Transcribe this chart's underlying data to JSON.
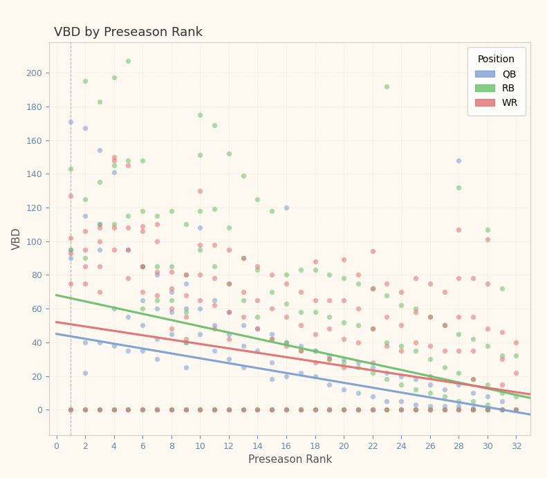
{
  "title": "VBD by Preseason Rank",
  "xlabel": "Preseason Rank",
  "ylabel": "VBD",
  "background_color": "#fdf9f0",
  "plot_bg_color": "#fdf9f0",
  "title_bg_color": "#d4d4d4",
  "colors": {
    "QB": "#7b9fd4",
    "RB": "#6abf69",
    "WR": "#e07070"
  },
  "xlim": [
    -0.5,
    33
  ],
  "ylim": [
    -15,
    218
  ],
  "xticks": [
    0,
    2,
    4,
    6,
    8,
    10,
    12,
    14,
    16,
    18,
    20,
    22,
    24,
    26,
    28,
    30,
    32
  ],
  "yticks": [
    0,
    20,
    40,
    60,
    80,
    100,
    120,
    140,
    160,
    180,
    200
  ],
  "QB_points": [
    [
      1,
      171
    ],
    [
      1,
      95
    ],
    [
      1,
      90
    ],
    [
      2,
      167
    ],
    [
      2,
      115
    ],
    [
      2,
      40
    ],
    [
      2,
      22
    ],
    [
      3,
      154
    ],
    [
      3,
      110
    ],
    [
      3,
      95
    ],
    [
      3,
      40
    ],
    [
      4,
      141
    ],
    [
      4,
      60
    ],
    [
      4,
      38
    ],
    [
      5,
      95
    ],
    [
      5,
      55
    ],
    [
      5,
      35
    ],
    [
      6,
      85
    ],
    [
      6,
      65
    ],
    [
      6,
      50
    ],
    [
      6,
      35
    ],
    [
      7,
      80
    ],
    [
      7,
      60
    ],
    [
      7,
      42
    ],
    [
      7,
      30
    ],
    [
      8,
      70
    ],
    [
      8,
      58
    ],
    [
      8,
      45
    ],
    [
      9,
      75
    ],
    [
      9,
      60
    ],
    [
      9,
      40
    ],
    [
      9,
      25
    ],
    [
      10,
      108
    ],
    [
      10,
      60
    ],
    [
      10,
      45
    ],
    [
      11,
      65
    ],
    [
      11,
      50
    ],
    [
      11,
      35
    ],
    [
      12,
      58
    ],
    [
      12,
      45
    ],
    [
      12,
      30
    ],
    [
      13,
      50
    ],
    [
      13,
      38
    ],
    [
      13,
      25
    ],
    [
      14,
      48
    ],
    [
      14,
      35
    ],
    [
      15,
      45
    ],
    [
      15,
      28
    ],
    [
      15,
      18
    ],
    [
      16,
      120
    ],
    [
      16,
      40
    ],
    [
      16,
      20
    ],
    [
      17,
      38
    ],
    [
      17,
      22
    ],
    [
      18,
      35
    ],
    [
      18,
      20
    ],
    [
      19,
      32
    ],
    [
      19,
      15
    ],
    [
      20,
      30
    ],
    [
      20,
      12
    ],
    [
      21,
      28
    ],
    [
      21,
      10
    ],
    [
      22,
      25
    ],
    [
      22,
      8
    ],
    [
      23,
      22
    ],
    [
      23,
      5
    ],
    [
      24,
      20
    ],
    [
      24,
      5
    ],
    [
      25,
      18
    ],
    [
      25,
      3
    ],
    [
      26,
      15
    ],
    [
      26,
      2
    ],
    [
      27,
      12
    ],
    [
      27,
      2
    ],
    [
      28,
      148
    ],
    [
      28,
      15
    ],
    [
      28,
      2
    ],
    [
      29,
      10
    ],
    [
      29,
      1
    ],
    [
      30,
      8
    ],
    [
      30,
      1
    ],
    [
      31,
      5
    ],
    [
      31,
      0
    ],
    [
      1,
      0
    ],
    [
      2,
      0
    ],
    [
      3,
      0
    ],
    [
      4,
      0
    ],
    [
      5,
      0
    ],
    [
      6,
      0
    ],
    [
      7,
      0
    ],
    [
      8,
      0
    ],
    [
      9,
      0
    ],
    [
      10,
      0
    ],
    [
      11,
      0
    ],
    [
      12,
      0
    ],
    [
      13,
      0
    ],
    [
      14,
      0
    ],
    [
      15,
      0
    ],
    [
      16,
      0
    ],
    [
      17,
      0
    ],
    [
      18,
      0
    ],
    [
      19,
      0
    ],
    [
      20,
      0
    ],
    [
      21,
      0
    ],
    [
      22,
      0
    ],
    [
      23,
      0
    ],
    [
      24,
      0
    ],
    [
      25,
      0
    ],
    [
      26,
      0
    ],
    [
      27,
      0
    ],
    [
      28,
      0
    ],
    [
      29,
      0
    ],
    [
      30,
      0
    ],
    [
      31,
      0
    ],
    [
      32,
      0
    ]
  ],
  "RB_points": [
    [
      1,
      143
    ],
    [
      1,
      95
    ],
    [
      2,
      195
    ],
    [
      2,
      125
    ],
    [
      2,
      90
    ],
    [
      3,
      183
    ],
    [
      3,
      135
    ],
    [
      3,
      110
    ],
    [
      4,
      197
    ],
    [
      4,
      145
    ],
    [
      4,
      110
    ],
    [
      5,
      207
    ],
    [
      5,
      148
    ],
    [
      5,
      115
    ],
    [
      6,
      148
    ],
    [
      6,
      118
    ],
    [
      6,
      85
    ],
    [
      6,
      60
    ],
    [
      7,
      115
    ],
    [
      7,
      85
    ],
    [
      7,
      65
    ],
    [
      8,
      118
    ],
    [
      8,
      85
    ],
    [
      8,
      65
    ],
    [
      9,
      110
    ],
    [
      9,
      80
    ],
    [
      9,
      58
    ],
    [
      9,
      40
    ],
    [
      10,
      175
    ],
    [
      10,
      151
    ],
    [
      10,
      118
    ],
    [
      10,
      95
    ],
    [
      11,
      169
    ],
    [
      11,
      119
    ],
    [
      11,
      85
    ],
    [
      12,
      152
    ],
    [
      12,
      108
    ],
    [
      12,
      75
    ],
    [
      13,
      139
    ],
    [
      13,
      90
    ],
    [
      13,
      65
    ],
    [
      14,
      125
    ],
    [
      14,
      83
    ],
    [
      14,
      55
    ],
    [
      15,
      118
    ],
    [
      15,
      70
    ],
    [
      15,
      42
    ],
    [
      16,
      80
    ],
    [
      16,
      63
    ],
    [
      16,
      40
    ],
    [
      17,
      83
    ],
    [
      17,
      58
    ],
    [
      17,
      35
    ],
    [
      18,
      83
    ],
    [
      18,
      58
    ],
    [
      18,
      35
    ],
    [
      19,
      80
    ],
    [
      19,
      55
    ],
    [
      19,
      30
    ],
    [
      20,
      78
    ],
    [
      20,
      52
    ],
    [
      20,
      28
    ],
    [
      21,
      75
    ],
    [
      21,
      50
    ],
    [
      21,
      25
    ],
    [
      22,
      72
    ],
    [
      22,
      48
    ],
    [
      22,
      22
    ],
    [
      23,
      192
    ],
    [
      23,
      68
    ],
    [
      23,
      40
    ],
    [
      23,
      18
    ],
    [
      24,
      62
    ],
    [
      24,
      38
    ],
    [
      24,
      15
    ],
    [
      25,
      60
    ],
    [
      25,
      35
    ],
    [
      25,
      12
    ],
    [
      26,
      55
    ],
    [
      26,
      30
    ],
    [
      26,
      10
    ],
    [
      27,
      50
    ],
    [
      27,
      25
    ],
    [
      27,
      8
    ],
    [
      28,
      132
    ],
    [
      28,
      45
    ],
    [
      28,
      22
    ],
    [
      28,
      5
    ],
    [
      29,
      42
    ],
    [
      29,
      18
    ],
    [
      29,
      5
    ],
    [
      30,
      107
    ],
    [
      30,
      38
    ],
    [
      30,
      15
    ],
    [
      30,
      3
    ],
    [
      31,
      72
    ],
    [
      31,
      32
    ],
    [
      31,
      10
    ],
    [
      32,
      32
    ],
    [
      32,
      8
    ],
    [
      1,
      0
    ],
    [
      2,
      0
    ],
    [
      3,
      0
    ],
    [
      4,
      0
    ],
    [
      5,
      0
    ],
    [
      6,
      0
    ],
    [
      7,
      0
    ],
    [
      8,
      0
    ],
    [
      9,
      0
    ],
    [
      10,
      0
    ],
    [
      11,
      0
    ],
    [
      12,
      0
    ],
    [
      13,
      0
    ],
    [
      14,
      0
    ],
    [
      15,
      0
    ],
    [
      16,
      0
    ],
    [
      17,
      0
    ],
    [
      18,
      0
    ],
    [
      19,
      0
    ],
    [
      20,
      0
    ],
    [
      21,
      0
    ],
    [
      22,
      0
    ],
    [
      23,
      0
    ],
    [
      24,
      0
    ],
    [
      25,
      0
    ],
    [
      26,
      0
    ],
    [
      27,
      0
    ],
    [
      28,
      0
    ],
    [
      29,
      0
    ],
    [
      30,
      0
    ],
    [
      31,
      0
    ],
    [
      32,
      0
    ]
  ],
  "WR_points": [
    [
      1,
      127
    ],
    [
      1,
      102
    ],
    [
      1,
      93
    ],
    [
      1,
      75
    ],
    [
      2,
      106
    ],
    [
      2,
      95
    ],
    [
      2,
      85
    ],
    [
      2,
      75
    ],
    [
      3,
      108
    ],
    [
      3,
      100
    ],
    [
      3,
      85
    ],
    [
      3,
      70
    ],
    [
      4,
      150
    ],
    [
      4,
      148
    ],
    [
      4,
      108
    ],
    [
      4,
      95
    ],
    [
      5,
      145
    ],
    [
      5,
      108
    ],
    [
      5,
      95
    ],
    [
      5,
      78
    ],
    [
      6,
      109
    ],
    [
      6,
      106
    ],
    [
      6,
      85
    ],
    [
      6,
      70
    ],
    [
      7,
      110
    ],
    [
      7,
      100
    ],
    [
      7,
      82
    ],
    [
      7,
      68
    ],
    [
      8,
      82
    ],
    [
      8,
      72
    ],
    [
      8,
      60
    ],
    [
      8,
      48
    ],
    [
      9,
      80
    ],
    [
      9,
      68
    ],
    [
      9,
      55
    ],
    [
      9,
      42
    ],
    [
      10,
      130
    ],
    [
      10,
      98
    ],
    [
      10,
      80
    ],
    [
      10,
      65
    ],
    [
      11,
      98
    ],
    [
      11,
      78
    ],
    [
      11,
      62
    ],
    [
      11,
      48
    ],
    [
      12,
      95
    ],
    [
      12,
      75
    ],
    [
      12,
      58
    ],
    [
      12,
      42
    ],
    [
      13,
      90
    ],
    [
      13,
      70
    ],
    [
      13,
      55
    ],
    [
      14,
      85
    ],
    [
      14,
      65
    ],
    [
      14,
      48
    ],
    [
      15,
      80
    ],
    [
      15,
      60
    ],
    [
      15,
      42
    ],
    [
      16,
      75
    ],
    [
      16,
      55
    ],
    [
      16,
      38
    ],
    [
      17,
      70
    ],
    [
      17,
      50
    ],
    [
      17,
      35
    ],
    [
      18,
      88
    ],
    [
      18,
      65
    ],
    [
      18,
      45
    ],
    [
      18,
      28
    ],
    [
      19,
      65
    ],
    [
      19,
      48
    ],
    [
      19,
      30
    ],
    [
      20,
      89
    ],
    [
      20,
      65
    ],
    [
      20,
      42
    ],
    [
      20,
      25
    ],
    [
      21,
      80
    ],
    [
      21,
      60
    ],
    [
      21,
      40
    ],
    [
      22,
      94
    ],
    [
      22,
      72
    ],
    [
      22,
      48
    ],
    [
      22,
      28
    ],
    [
      23,
      75
    ],
    [
      23,
      55
    ],
    [
      23,
      38
    ],
    [
      24,
      70
    ],
    [
      24,
      50
    ],
    [
      24,
      35
    ],
    [
      25,
      78
    ],
    [
      25,
      58
    ],
    [
      25,
      40
    ],
    [
      26,
      75
    ],
    [
      26,
      55
    ],
    [
      26,
      38
    ],
    [
      26,
      20
    ],
    [
      27,
      70
    ],
    [
      27,
      50
    ],
    [
      27,
      35
    ],
    [
      28,
      107
    ],
    [
      28,
      78
    ],
    [
      28,
      55
    ],
    [
      28,
      35
    ],
    [
      29,
      78
    ],
    [
      29,
      55
    ],
    [
      29,
      35
    ],
    [
      29,
      18
    ],
    [
      30,
      101
    ],
    [
      30,
      75
    ],
    [
      30,
      48
    ],
    [
      31,
      46
    ],
    [
      31,
      30
    ],
    [
      31,
      15
    ],
    [
      32,
      40
    ],
    [
      32,
      22
    ],
    [
      1,
      0
    ],
    [
      2,
      0
    ],
    [
      3,
      0
    ],
    [
      4,
      0
    ],
    [
      5,
      0
    ],
    [
      6,
      0
    ],
    [
      7,
      0
    ],
    [
      8,
      0
    ],
    [
      9,
      0
    ],
    [
      10,
      0
    ],
    [
      11,
      0
    ],
    [
      12,
      0
    ],
    [
      13,
      0
    ],
    [
      14,
      0
    ],
    [
      15,
      0
    ],
    [
      16,
      0
    ],
    [
      17,
      0
    ],
    [
      18,
      0
    ],
    [
      19,
      0
    ],
    [
      20,
      0
    ],
    [
      21,
      0
    ],
    [
      22,
      0
    ],
    [
      23,
      0
    ],
    [
      24,
      0
    ],
    [
      25,
      0
    ],
    [
      26,
      0
    ],
    [
      27,
      0
    ],
    [
      28,
      0
    ],
    [
      29,
      0
    ],
    [
      30,
      0
    ],
    [
      31,
      0
    ],
    [
      32,
      0
    ]
  ],
  "trend_QB": {
    "intercept": 45,
    "slope": -1.45
  },
  "trend_RB": {
    "intercept": 68,
    "slope": -1.85
  },
  "trend_WR": {
    "intercept": 52,
    "slope": -1.3
  },
  "alpha": 0.55,
  "marker_size": 28
}
